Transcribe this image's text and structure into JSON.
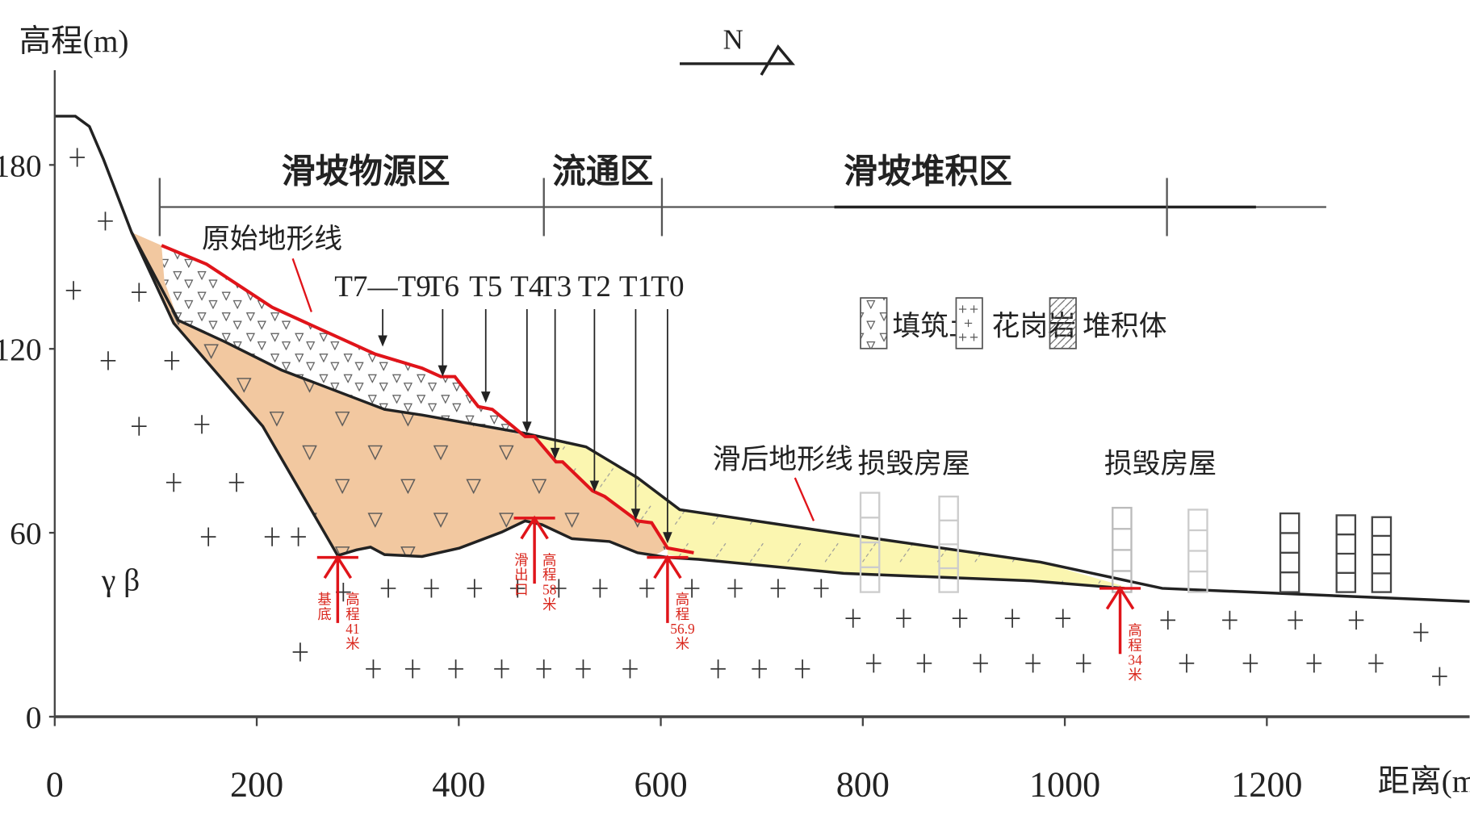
{
  "y_axis": {
    "label": "高程(m)",
    "ticks": [
      0,
      60,
      120,
      180
    ]
  },
  "x_axis": {
    "label": "距离(m)",
    "ticks": [
      0,
      200,
      400,
      600,
      800,
      1000,
      1200
    ]
  },
  "north": "N",
  "zones": [
    "滑坡物源区",
    "流通区",
    "滑坡堆积区"
  ],
  "terrain_lines": {
    "original": "原始地形线",
    "after": "滑后地形线"
  },
  "points": [
    "T7—T9",
    "T6",
    "T5",
    "T4",
    "T3",
    "T2",
    "T1",
    "T0"
  ],
  "legend": [
    "填筑土",
    "花岗岩",
    "堆积体"
  ],
  "houses": [
    "损毁房屋",
    "损毁房屋"
  ],
  "rock": "γ β",
  "markers": [
    {
      "note": "基底",
      "elevation": "高程41米"
    },
    {
      "note": "滑出口",
      "elevation": "高程58米"
    },
    {
      "elevation": "高程56.9米"
    },
    {
      "elevation": "高程34米"
    }
  ]
}
